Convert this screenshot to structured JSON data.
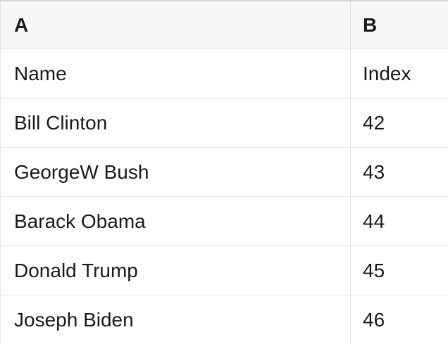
{
  "table": {
    "column_headers": [
      "A",
      "B"
    ],
    "rows": [
      {
        "name": "Name",
        "index": "Index"
      },
      {
        "name": "Bill Clinton",
        "index": "42"
      },
      {
        "name": "GeorgeW Bush",
        "index": "43"
      },
      {
        "name": "Barack Obama",
        "index": "44"
      },
      {
        "name": "Donald Trump",
        "index": "45"
      },
      {
        "name": "Joseph Biden",
        "index": "46"
      }
    ]
  },
  "colors": {
    "header_bg": "#f7f7f7",
    "row_bg": "#ffffff",
    "border": "#e3e3e3",
    "top_border": "#d8d8d8",
    "text": "#1a1a1a"
  }
}
